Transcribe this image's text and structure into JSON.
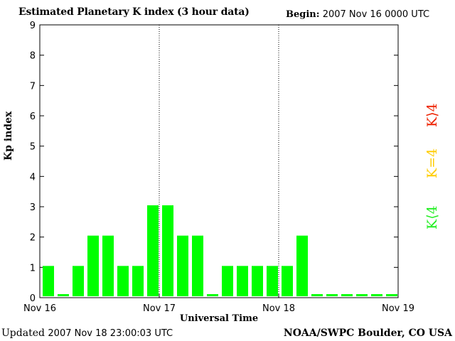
{
  "header": {
    "title": "Estimated Planetary K index (3 hour data)",
    "begin_label": "Begin:",
    "begin_value": "2007 Nov 16 0000 UTC"
  },
  "footer": {
    "updated_label": "Updated",
    "updated_value": "2007 Nov 18 23:00:03 UTC",
    "source": "NOAA/SWPC Boulder, CO USA"
  },
  "legend": {
    "low": "K⟨4",
    "mid": "K=4",
    "high": "K⟩4",
    "colors": {
      "low": "#22ee22",
      "mid": "#ffcc00",
      "high": "#ee2200"
    }
  },
  "colors": {
    "bar": "#00ff00"
  },
  "chart_data": {
    "type": "bar",
    "title": "Estimated Planetary K index (3 hour data)",
    "xlabel": "Universal Time",
    "ylabel": "Kp index",
    "ylim": [
      0,
      9
    ],
    "yticks": [
      "0",
      "1",
      "2",
      "3",
      "4",
      "5",
      "6",
      "7",
      "8",
      "9"
    ],
    "xticks": [
      "Nov 16",
      "Nov 17",
      "Nov 18",
      "Nov 19"
    ],
    "day_separators": true,
    "values": [
      1,
      0,
      1,
      2,
      2,
      1,
      1,
      3,
      3,
      2,
      2,
      0,
      1,
      1,
      1,
      1,
      1,
      2,
      0,
      0,
      0,
      0,
      0,
      0
    ]
  }
}
